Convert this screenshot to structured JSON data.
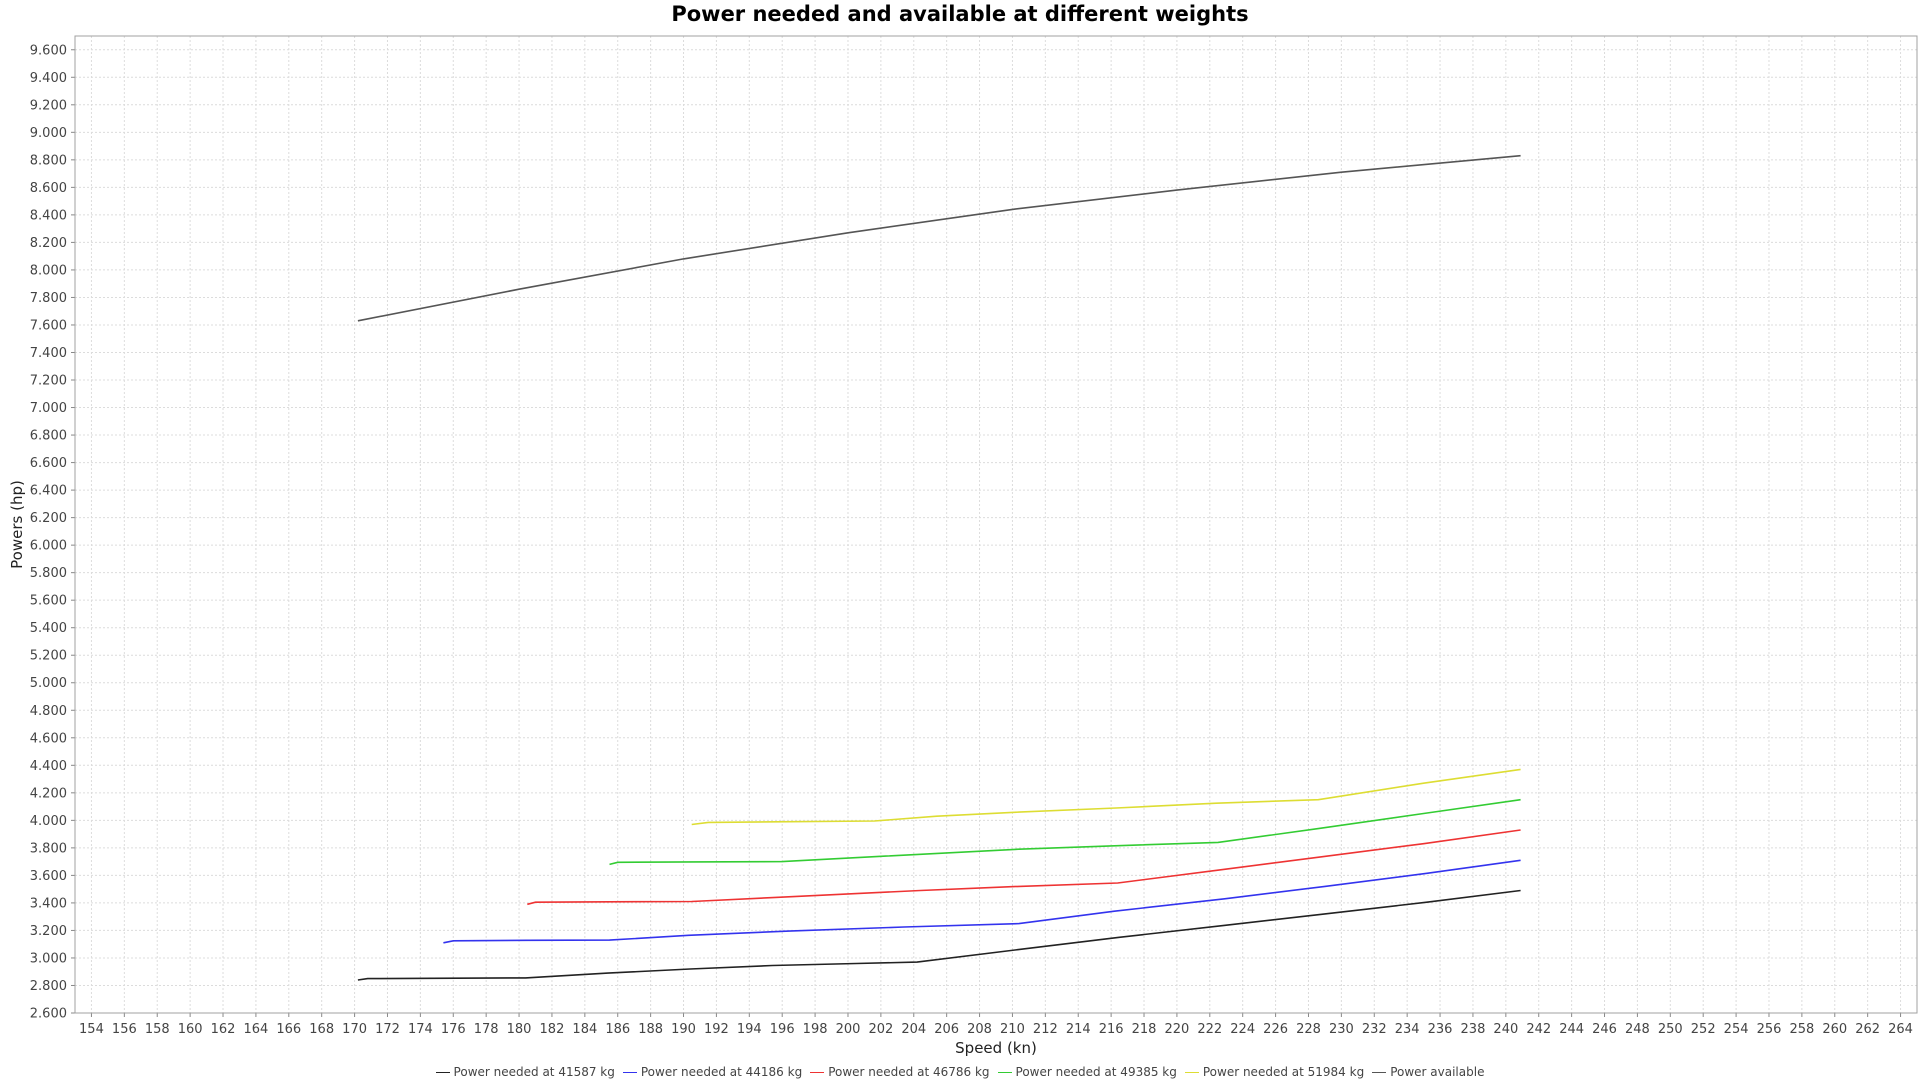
{
  "chart_data": {
    "type": "line",
    "title": "Power needed and available at different weights",
    "xlabel": "Speed (kn)",
    "ylabel": "Powers (hp)",
    "xlim": [
      153,
      265
    ],
    "ylim": [
      2600,
      9700
    ],
    "x_ticks": [
      "154",
      "156",
      "158",
      "160",
      "162",
      "164",
      "166",
      "168",
      "170",
      "172",
      "174",
      "176",
      "178",
      "180",
      "182",
      "184",
      "186",
      "188",
      "190",
      "192",
      "194",
      "196",
      "198",
      "200",
      "202",
      "204",
      "206",
      "208",
      "210",
      "212",
      "214",
      "216",
      "218",
      "220",
      "222",
      "224",
      "226",
      "228",
      "230",
      "232",
      "234",
      "236",
      "238",
      "240",
      "242",
      "244",
      "246",
      "248",
      "250",
      "252",
      "254",
      "256",
      "258",
      "260",
      "262",
      "264"
    ],
    "y_ticks": [
      "2.600",
      "2.800",
      "3.000",
      "3.200",
      "3.400",
      "3.600",
      "3.800",
      "4.000",
      "4.200",
      "4.400",
      "4.600",
      "4.800",
      "5.000",
      "5.200",
      "5.400",
      "5.600",
      "5.800",
      "6.000",
      "6.200",
      "6.400",
      "6.600",
      "6.800",
      "7.000",
      "7.200",
      "7.400",
      "7.600",
      "7.800",
      "8.000",
      "8.200",
      "8.400",
      "8.600",
      "8.800",
      "9.000",
      "9.200",
      "9.400",
      "9.600"
    ],
    "grid": true,
    "legend_position": "bottom",
    "series": [
      {
        "name": "Power needed at 41587 kg",
        "color": "#222222",
        "x": [
          170.2,
          170.8,
          180.4,
          185.4,
          190.4,
          195.4,
          200.5,
          204.2,
          210.3,
          216.5,
          222.8,
          229.0,
          235.2,
          240.9
        ],
        "y": [
          2840,
          2850,
          2855,
          2890,
          2920,
          2945,
          2960,
          2970,
          3060,
          3150,
          3235,
          3320,
          3405,
          3490
        ]
      },
      {
        "name": "Power needed at 44186 kg",
        "color": "#3333ee",
        "x": [
          175.4,
          176.0,
          180.5,
          185.5,
          190.3,
          196.4,
          203.4,
          210.4,
          216.2,
          222.9,
          229.0,
          235.2,
          240.9
        ],
        "y": [
          3110,
          3125,
          3128,
          3130,
          3165,
          3195,
          3225,
          3250,
          3340,
          3430,
          3520,
          3615,
          3710
        ]
      },
      {
        "name": "Power needed at 46786 kg",
        "color": "#ee3333",
        "x": [
          180.5,
          181.0,
          185.5,
          190.5,
          195.6,
          204.4,
          210.4,
          216.4,
          222.6,
          228.8,
          235.0,
          240.9
        ],
        "y": [
          3390,
          3405,
          3408,
          3410,
          3440,
          3490,
          3520,
          3545,
          3640,
          3735,
          3830,
          3930
        ]
      },
      {
        "name": "Power needed at 49385 kg",
        "color": "#33cc33",
        "x": [
          185.5,
          186.0,
          190.5,
          196.0,
          202.3,
          210.4,
          216.2,
          222.5,
          228.6,
          235.0,
          240.9
        ],
        "y": [
          3680,
          3695,
          3698,
          3700,
          3740,
          3790,
          3815,
          3840,
          3940,
          4050,
          4150
        ]
      },
      {
        "name": "Power needed at 51984 kg",
        "color": "#dddd33",
        "x": [
          190.5,
          191.5,
          196.5,
          201.6,
          205.4,
          210.4,
          216.3,
          222.4,
          228.6,
          235.0,
          240.9
        ],
        "y": [
          3970,
          3985,
          3990,
          3995,
          4030,
          4060,
          4090,
          4125,
          4150,
          4270,
          4370
        ]
      },
      {
        "name": "Power available",
        "color": "#555555",
        "x": [
          170.2,
          180.0,
          190.0,
          200.0,
          210.0,
          220.0,
          230.0,
          240.9
        ],
        "y": [
          7630,
          7860,
          8080,
          8270,
          8440,
          8580,
          8710,
          8830
        ]
      }
    ]
  }
}
